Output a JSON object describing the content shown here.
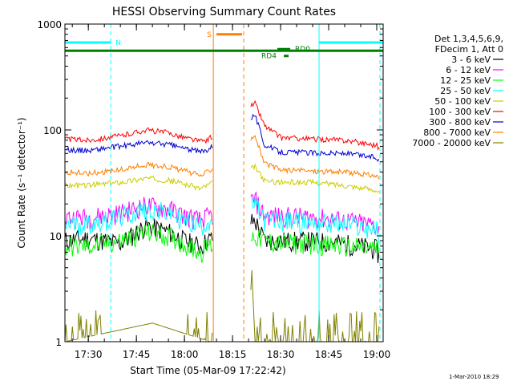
{
  "footer": {
    "timestamp": "1-Mar-2010 18:29"
  },
  "chart_data": {
    "type": "line",
    "title": "HESSI Observing Summary Count Rates",
    "xlabel": "Start Time (05-Mar-09 17:22:42)",
    "ylabel": "Count Rate (s⁻¹ detector⁻¹)",
    "y_scale": "log",
    "ylim": [
      1,
      1000
    ],
    "xlim": [
      "17:22:42",
      "19:02:00"
    ],
    "x_ticks": [
      "17:30",
      "17:45",
      "18:00",
      "18:15",
      "18:30",
      "18:45",
      "19:00"
    ],
    "y_ticks": [
      "1",
      "10",
      "100",
      "1000"
    ],
    "grid": false,
    "legend_position": "right-outside",
    "legend_header": [
      "Det 1,3,4,5,6,9,",
      "FDecim 1, Att 0"
    ],
    "series": [
      {
        "name": "3 - 6 keV",
        "color": "#000000",
        "x": [
          "17:22:42",
          "17:30",
          "17:40",
          "17:48",
          "17:55",
          "18:00",
          "18:05",
          "18:07",
          "18:22",
          "18:25",
          "18:30",
          "18:40",
          "18:50",
          "19:00",
          "19:01"
        ],
        "y": [
          9,
          9.5,
          8.5,
          12.5,
          11,
          9,
          8,
          9,
          14,
          9,
          9,
          9,
          8.5,
          7.5,
          6
        ]
      },
      {
        "name": "6 - 12 keV",
        "color": "#ff00ff",
        "x": [
          "17:22:42",
          "17:30",
          "17:40",
          "17:48",
          "17:55",
          "18:00",
          "18:05",
          "18:07",
          "18:22",
          "18:25",
          "18:30",
          "18:40",
          "18:50",
          "19:00",
          "19:01"
        ],
        "y": [
          15,
          15,
          16.5,
          19.5,
          18,
          15.5,
          14,
          15,
          22,
          15.5,
          15.5,
          15,
          14,
          12.5,
          11
        ]
      },
      {
        "name": "12 - 25 keV",
        "color": "#00ff00",
        "x": [
          "17:22:42",
          "17:30",
          "17:40",
          "17:48",
          "17:55",
          "18:00",
          "18:05",
          "18:07",
          "18:22",
          "18:25",
          "18:30",
          "18:40",
          "18:50",
          "19:00",
          "19:01"
        ],
        "y": [
          8,
          8,
          9,
          11,
          10,
          8.5,
          7,
          8,
          10,
          9,
          8.5,
          8.5,
          8,
          7.5,
          7
        ]
      },
      {
        "name": "25 - 50 keV",
        "color": "#00ffff",
        "x": [
          "17:22:42",
          "17:30",
          "17:40",
          "17:48",
          "17:55",
          "18:00",
          "18:05",
          "18:07",
          "18:22",
          "18:25",
          "18:30",
          "18:40",
          "18:50",
          "19:00",
          "19:01"
        ],
        "y": [
          13,
          13,
          15,
          18,
          16.5,
          14,
          12.5,
          13.5,
          20,
          14,
          14,
          13.5,
          13,
          11.5,
          10
        ]
      },
      {
        "name": "50 - 100 keV",
        "color": "#cccc00",
        "x": [
          "17:22:42",
          "17:30",
          "17:40",
          "17:48",
          "17:55",
          "18:00",
          "18:05",
          "18:07",
          "18:22",
          "18:25",
          "18:30",
          "18:40",
          "18:50",
          "19:00",
          "19:01"
        ],
        "y": [
          30,
          30,
          32,
          35,
          33.5,
          31,
          28,
          30,
          45,
          33,
          32,
          32,
          30,
          27,
          25
        ]
      },
      {
        "name": "100 - 300 keV",
        "color": "#ff0000",
        "x": [
          "17:22:42",
          "17:30",
          "17:40",
          "17:48",
          "17:55",
          "18:00",
          "18:05",
          "18:07",
          "18:22",
          "18:25",
          "18:30",
          "18:40",
          "18:50",
          "19:00",
          "19:01"
        ],
        "y": [
          82,
          80,
          88,
          100,
          94,
          85,
          78,
          80,
          180,
          110,
          85,
          82,
          80,
          72,
          65
        ]
      },
      {
        "name": "300 - 800 keV",
        "color": "#0000cc",
        "x": [
          "17:22:42",
          "17:30",
          "17:40",
          "17:48",
          "17:55",
          "18:00",
          "18:05",
          "18:07",
          "18:22",
          "18:25",
          "18:30",
          "18:40",
          "18:50",
          "19:00",
          "19:01"
        ],
        "y": [
          65,
          64,
          70,
          76,
          73,
          67,
          62,
          65,
          140,
          72,
          62,
          61,
          60,
          55,
          50
        ]
      },
      {
        "name": "800 - 7000 keV",
        "color": "#ff7f00",
        "x": [
          "17:22:42",
          "17:30",
          "17:40",
          "17:48",
          "17:55",
          "18:00",
          "18:05",
          "18:07",
          "18:22",
          "18:25",
          "18:30",
          "18:40",
          "18:50",
          "19:00",
          "19:01"
        ],
        "y": [
          40,
          39,
          42,
          47,
          45,
          41,
          37,
          40,
          90,
          48,
          42,
          41,
          40,
          37,
          34
        ]
      },
      {
        "name": "7000 - 20000 keV",
        "color": "#808000",
        "x": [
          "17:22:42",
          "17:50",
          "18:08",
          "18:20",
          "18:21",
          "18:22",
          "19:01"
        ],
        "y": [
          1,
          1.5,
          1,
          1,
          5,
          1,
          1
        ]
      }
    ],
    "annotations": [
      {
        "label": "N",
        "color": "#00ffff",
        "type": "bar",
        "y": 670,
        "start": "17:22:42",
        "end": "17:37:00"
      },
      {
        "label": "",
        "color": "#00ffff",
        "type": "bar",
        "y": 670,
        "start": "18:42:00",
        "end": "19:02:00"
      },
      {
        "label": "S",
        "color": "#ff7f00",
        "type": "bar",
        "y": 800,
        "start": "18:10:00",
        "end": "18:18:00"
      },
      {
        "label": "",
        "color": "#008000",
        "type": "bar",
        "y": 560,
        "start": "17:22:42",
        "end": "19:02:00"
      },
      {
        "label": "RD0",
        "color": "#008000",
        "type": "bar",
        "y": 580,
        "start": "18:29:00",
        "end": "18:33:00"
      },
      {
        "label": "RD4",
        "color": "#008000",
        "type": "bar",
        "y": 500,
        "start": "18:31:00",
        "end": "18:32:30"
      }
    ],
    "vlines": [
      {
        "at": "17:22:42",
        "color": "#00ffff",
        "style": "solid"
      },
      {
        "at": "17:37:00",
        "color": "#00ffff",
        "style": "dashed"
      },
      {
        "at": "18:09:00",
        "color": "#ff7f00",
        "style": "solid"
      },
      {
        "at": "18:18:30",
        "color": "#ff7f00",
        "style": "dashed"
      },
      {
        "at": "18:42:00",
        "color": "#00ffff",
        "style": "solid"
      },
      {
        "at": "19:01:00",
        "color": "#00ffff",
        "style": "dashed"
      }
    ],
    "data_gaps": [
      {
        "start": "18:09:00",
        "end": "18:20:30"
      }
    ]
  }
}
